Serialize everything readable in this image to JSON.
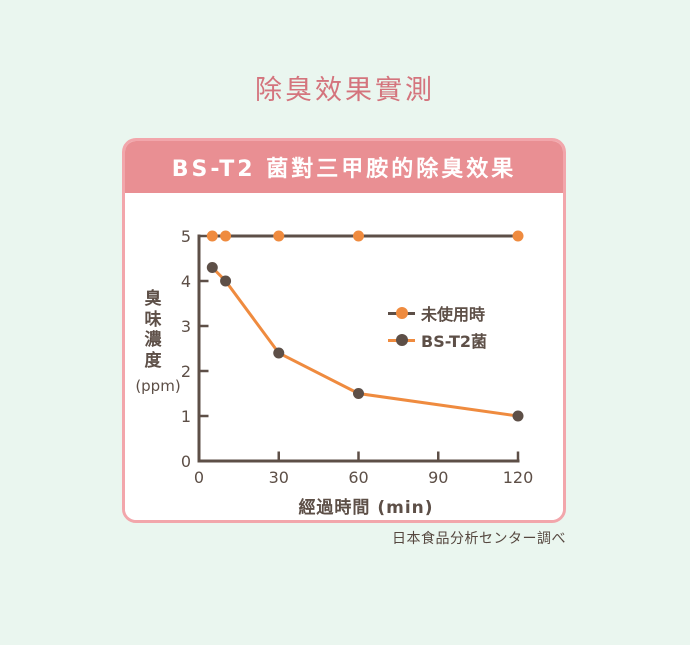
{
  "page": {
    "title": "除臭效果實測",
    "source": "日本食品分析センター調べ"
  },
  "card": {
    "header": "BS-T2 菌對三甲胺的除臭效果"
  },
  "colors": {
    "background": "#eaf6ef",
    "title_pink": "#d4747d",
    "header_pink": "#e98f93",
    "card_border_pink": "#f2a6ab",
    "axis_dark_brown": "#5d4f47",
    "accent_orange": "#ef8b3f"
  },
  "chart_data": {
    "type": "line",
    "x": [
      5,
      10,
      30,
      60,
      120
    ],
    "series": [
      {
        "name": "未使用時",
        "values": [
          5,
          5,
          5,
          5,
          5
        ],
        "line_color": "#5d4f47",
        "marker_color": "#ef8b3f"
      },
      {
        "name": "BS-T2菌",
        "values": [
          4.3,
          4.0,
          2.4,
          1.5,
          1.0
        ],
        "line_color": "#ef8b3f",
        "marker_color": "#5d4f47"
      }
    ],
    "title": "BS-T2 菌對三甲胺的除臭效果",
    "xlabel": "經過時間 (min)",
    "ylabel": "臭味濃度",
    "ylabel_unit": "(ppm)",
    "xlim": [
      0,
      120
    ],
    "ylim": [
      0,
      5
    ],
    "x_ticks": [
      0,
      30,
      60,
      90,
      120
    ],
    "y_ticks": [
      0,
      1,
      2,
      3,
      4,
      5
    ],
    "grid": false,
    "legend_position": "center-right inside plot"
  }
}
